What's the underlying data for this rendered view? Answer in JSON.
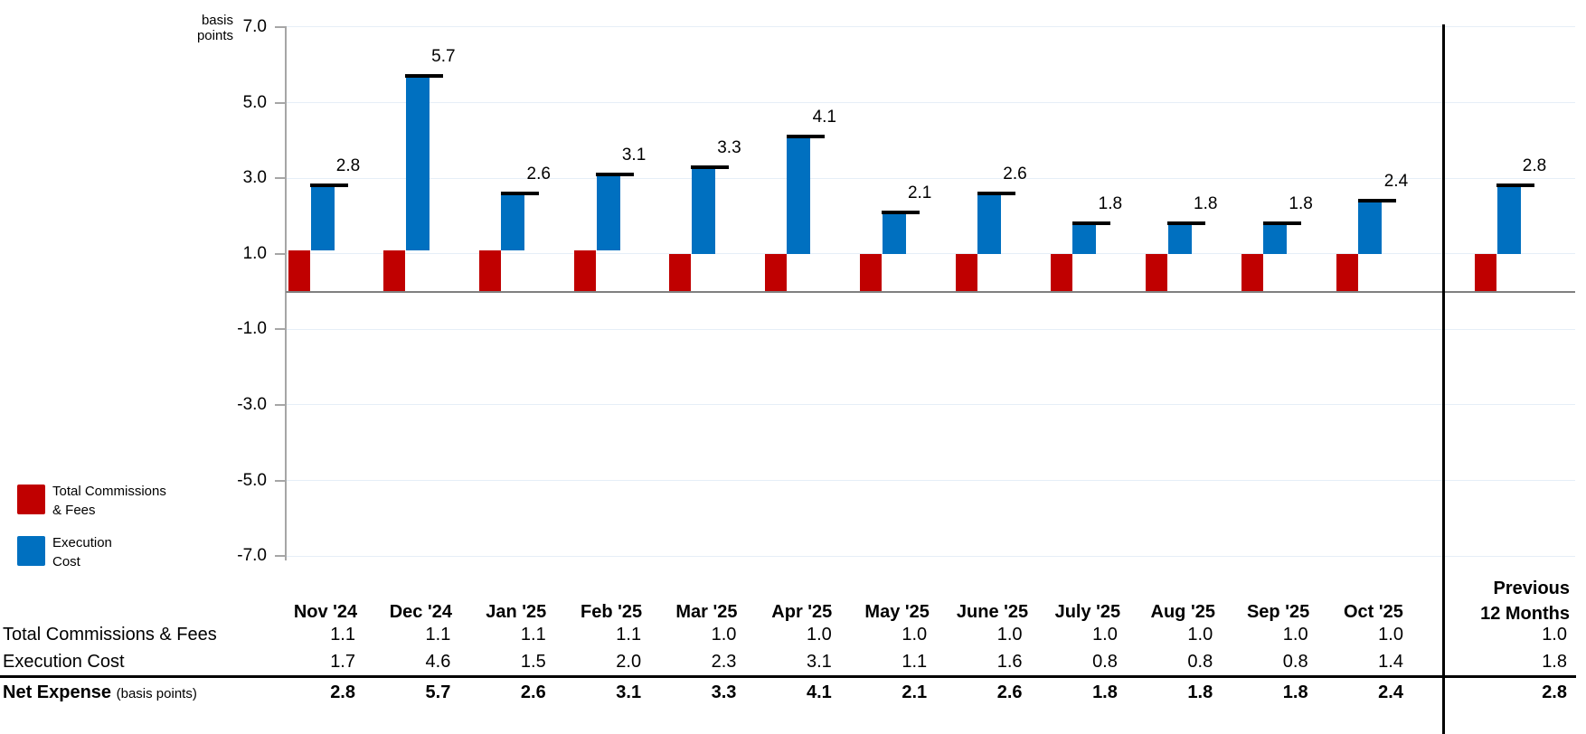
{
  "chart": {
    "unit_label": "basis\npoints",
    "y_ticks": [
      {
        "value": 7,
        "label": "7.0"
      },
      {
        "value": 5,
        "label": "5.0"
      },
      {
        "value": 3,
        "label": "3.0"
      },
      {
        "value": 1,
        "label": "1.0"
      },
      {
        "value": -1,
        "label": "-1.0"
      },
      {
        "value": -3,
        "label": "-3.0"
      },
      {
        "value": -5,
        "label": "-5.0"
      },
      {
        "value": -7,
        "label": "-7.0"
      }
    ],
    "legend": [
      {
        "id": "total-commissions-fees",
        "label": "Total Commissions\n& Fees",
        "color": "#C00000"
      },
      {
        "id": "execution-cost",
        "label": "Execution\nCost",
        "color": "#0070C0"
      }
    ],
    "colors": {
      "total_commissions_fees": "#C00000",
      "execution_cost": "#0070C0",
      "net_marker": "#000000",
      "gridline": "#E6EEF7",
      "zero_line": "#808080",
      "axis": "#A6A6A6",
      "divider": "#000000"
    }
  },
  "chart_data": {
    "type": "bar",
    "subtype": "stacked-with-total-markers",
    "title": "",
    "ylabel": "basis points",
    "ylim": [
      -7.0,
      7.0
    ],
    "ytick_step": 2.0,
    "grid": true,
    "legend_position": "bottom-left",
    "separator_before_category": "Previous 12 Months",
    "categories": [
      "Nov '24",
      "Dec '24",
      "Jan '25",
      "Feb '25",
      "Mar '25",
      "Apr '25",
      "May '25",
      "June '25",
      "July '25",
      "Aug '25",
      "Sep '25",
      "Oct '25",
      "Previous 12 Months"
    ],
    "series": [
      {
        "name": "Total Commissions & Fees",
        "color": "#C00000",
        "values": [
          1.1,
          1.1,
          1.1,
          1.1,
          1.0,
          1.0,
          1.0,
          1.0,
          1.0,
          1.0,
          1.0,
          1.0,
          1.0
        ]
      },
      {
        "name": "Execution Cost",
        "color": "#0070C0",
        "values": [
          1.7,
          4.6,
          1.5,
          2.0,
          2.3,
          3.1,
          1.1,
          1.6,
          0.8,
          0.8,
          0.8,
          1.4,
          1.8
        ]
      }
    ],
    "totals_series": {
      "name": "Net Expense",
      "marker": "black-dash",
      "data_labels": true,
      "values": [
        2.8,
        5.7,
        2.6,
        3.1,
        3.3,
        4.1,
        2.1,
        2.6,
        1.8,
        1.8,
        1.8,
        2.4,
        2.8
      ]
    }
  },
  "table": {
    "prev_header": "Previous\n12 Months",
    "rows": [
      {
        "label": "Total Commissions & Fees",
        "bold": false
      },
      {
        "label": "Execution Cost",
        "bold": false
      }
    ],
    "net_row": {
      "label": "Net Expense",
      "suffix": "(basis points)",
      "bold": true
    }
  }
}
